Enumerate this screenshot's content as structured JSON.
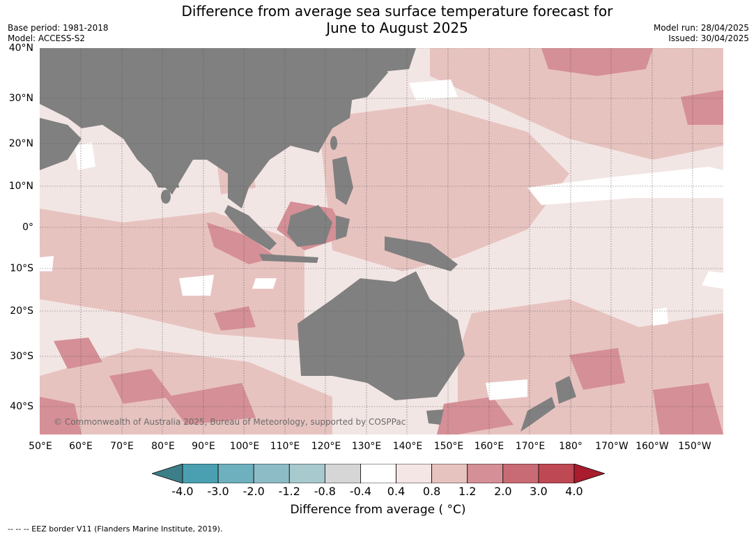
{
  "title_line1": "Difference from average sea surface temperature forecast for",
  "title_line2": "June to August 2025",
  "meta_left": {
    "base_period": "Base period: 1981-2018",
    "model": "Model: ACCESS-S2"
  },
  "meta_right": {
    "model_run": "Model run: 28/04/2025",
    "issued": "Issued: 30/04/2025"
  },
  "lat_labels": [
    "40°N",
    "30°N",
    "20°N",
    "10°N",
    "0°",
    "10°S",
    "20°S",
    "30°S",
    "40°S"
  ],
  "lon_labels": [
    "50°E",
    "60°E",
    "70°E",
    "80°E",
    "90°E",
    "100°E",
    "110°E",
    "120°E",
    "130°E",
    "140°E",
    "150°E",
    "160°E",
    "170°E",
    "180°",
    "170°W",
    "160°W",
    "150°W"
  ],
  "copyright": "© Commonwealth of Australia 2025, Bureau of Meteorology, supported by COSPPac",
  "colorbar": {
    "colors": [
      "#3d7f89",
      "#4aa0b1",
      "#6eb0bd",
      "#8ebcc6",
      "#a8c9cd",
      "#d6d6d6",
      "#ffffff",
      "#f3e6e4",
      "#e7c3c0",
      "#d58f96",
      "#c96b74",
      "#be4853",
      "#a81c2e"
    ],
    "tick_labels": [
      "-4.0",
      "-3.0",
      "-2.0",
      "-1.2",
      "-0.8",
      "-0.4",
      "0.4",
      "0.8",
      "1.2",
      "2.0",
      "3.0",
      "4.0"
    ],
    "title": "Difference from average ( °C)"
  },
  "footnote": "-- -- -- EEZ border V11 (Flanders Marine Institute, 2019).",
  "colors": {
    "land": "#808080",
    "ocean_base": "#f2e6e4",
    "warm": "#e7c3c0",
    "hot": "#d58f96"
  }
}
